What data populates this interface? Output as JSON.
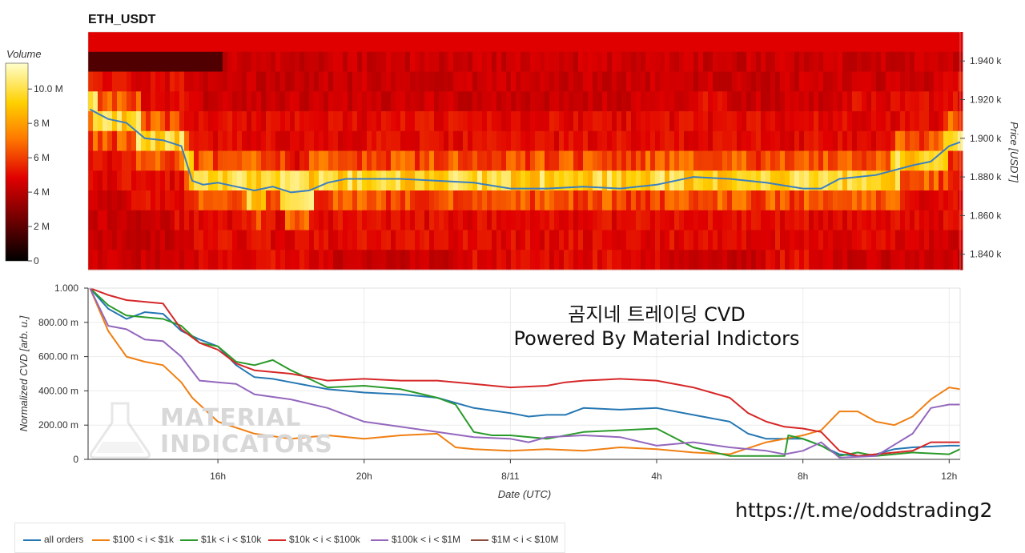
{
  "chart_data": [
    {
      "type": "heatmap",
      "title": "ETH_USDT",
      "colorbar": {
        "title": "Volume",
        "ticks": [
          "0",
          "2 M",
          "4 M",
          "6 M",
          "8 M",
          "10.0 M"
        ],
        "range": [
          0,
          11.5
        ]
      },
      "ylabel": "Price [USDT]",
      "y_ticks": [
        "1.840 k",
        "1.860 k",
        "1.880 k",
        "1.900 k",
        "1.920 k",
        "1.940 k"
      ],
      "ylim": [
        1832,
        1955
      ],
      "price_line": {
        "color": "#3a7fbf",
        "x": [
          12.5,
          13.0,
          13.5,
          14.0,
          14.5,
          15.0,
          15.3,
          15.6,
          16.0,
          16.5,
          17.0,
          17.5,
          18.0,
          18.5,
          19.0,
          19.5,
          20.0,
          21.0,
          22.0,
          23.0,
          24.0,
          25.0,
          26.0,
          27.0,
          28.0,
          29.0,
          30.0,
          31.0,
          32.0,
          32.5,
          33.0,
          33.5,
          34.0,
          35.0,
          35.5,
          36.0,
          36.3
        ],
        "y": [
          1915,
          1910,
          1908,
          1900,
          1899,
          1896,
          1878,
          1876,
          1877,
          1875,
          1873,
          1875,
          1872,
          1873,
          1877,
          1879,
          1879,
          1879,
          1878,
          1877,
          1874,
          1874,
          1875,
          1874,
          1876,
          1880,
          1879,
          1877,
          1874,
          1874,
          1879,
          1880,
          1881,
          1886,
          1888,
          1896,
          1898
        ]
      }
    },
    {
      "type": "line",
      "title": "",
      "xlabel": "Date (UTC)",
      "ylabel": "Normalized CVD [arb. u.]",
      "x_ticks": [
        "16h",
        "20h",
        "8/11",
        "4h",
        "8h",
        "12h"
      ],
      "x_tick_hours": [
        16,
        20,
        24,
        28,
        32,
        36
      ],
      "y_ticks": [
        "0",
        "200.00 m",
        "400.00 m",
        "600.00 m",
        "800.00 m",
        "1.000"
      ],
      "xlim": [
        12.45,
        36.3
      ],
      "ylim": [
        0,
        1.0
      ],
      "grid": true,
      "legend_position": "bottom-left",
      "series": [
        {
          "name": "all orders",
          "color": "#2577b3",
          "x": [
            12.5,
            13.0,
            13.5,
            14.0,
            14.5,
            15.0,
            15.5,
            16.0,
            16.5,
            17.0,
            17.5,
            18.0,
            19.0,
            20.0,
            21.0,
            22.0,
            23.0,
            24.0,
            24.5,
            25.0,
            25.5,
            26.0,
            27.0,
            28.0,
            29.0,
            30.0,
            30.5,
            31.0,
            32.0,
            32.5,
            33.0,
            33.5,
            34.0,
            34.5,
            35.0,
            36.0,
            36.3
          ],
          "y": [
            1.0,
            0.88,
            0.82,
            0.86,
            0.85,
            0.75,
            0.7,
            0.66,
            0.55,
            0.48,
            0.47,
            0.45,
            0.41,
            0.39,
            0.38,
            0.36,
            0.3,
            0.27,
            0.25,
            0.26,
            0.26,
            0.3,
            0.29,
            0.3,
            0.26,
            0.22,
            0.15,
            0.12,
            0.12,
            0.08,
            0.03,
            0.02,
            0.03,
            0.06,
            0.07,
            0.08,
            0.08
          ]
        },
        {
          "name": "$100 < i < $1k",
          "color": "#f07f12",
          "x": [
            12.5,
            13.0,
            13.5,
            14.0,
            14.5,
            15.0,
            15.3,
            16.0,
            17.0,
            18.0,
            19.0,
            20.0,
            21.0,
            22.0,
            22.5,
            23.0,
            24.0,
            25.0,
            26.0,
            27.0,
            28.0,
            29.0,
            30.0,
            31.0,
            32.0,
            32.5,
            33.0,
            33.5,
            34.0,
            34.5,
            35.0,
            35.5,
            36.0,
            36.3
          ],
          "y": [
            1.0,
            0.75,
            0.6,
            0.57,
            0.55,
            0.45,
            0.36,
            0.22,
            0.15,
            0.12,
            0.14,
            0.12,
            0.14,
            0.15,
            0.07,
            0.06,
            0.05,
            0.06,
            0.05,
            0.07,
            0.06,
            0.04,
            0.03,
            0.1,
            0.14,
            0.17,
            0.28,
            0.28,
            0.22,
            0.2,
            0.25,
            0.35,
            0.42,
            0.41
          ]
        },
        {
          "name": "$1k < i < $10k",
          "color": "#2a9a2a",
          "x": [
            12.5,
            13.0,
            13.5,
            14.0,
            14.5,
            15.0,
            15.5,
            16.0,
            16.5,
            17.0,
            17.5,
            18.0,
            19.0,
            20.0,
            21.0,
            22.0,
            22.5,
            23.0,
            23.5,
            24.0,
            25.0,
            26.0,
            27.0,
            28.0,
            29.0,
            30.0,
            31.0,
            31.5,
            31.6,
            32.0,
            32.5,
            33.0,
            33.5,
            34.0,
            35.0,
            36.0,
            36.3
          ],
          "y": [
            1.0,
            0.9,
            0.84,
            0.83,
            0.82,
            0.78,
            0.68,
            0.66,
            0.57,
            0.55,
            0.58,
            0.52,
            0.42,
            0.43,
            0.41,
            0.36,
            0.32,
            0.16,
            0.14,
            0.14,
            0.12,
            0.16,
            0.17,
            0.18,
            0.07,
            0.02,
            0.02,
            0.02,
            0.14,
            0.12,
            0.08,
            0.02,
            0.04,
            0.02,
            0.04,
            0.03,
            0.06
          ]
        },
        {
          "name": "$10k < i < $100k",
          "color": "#d62728",
          "x": [
            12.5,
            13.0,
            13.5,
            14.0,
            14.5,
            15.0,
            15.5,
            16.0,
            16.5,
            17.0,
            18.0,
            19.0,
            20.0,
            21.0,
            22.0,
            23.0,
            24.0,
            25.0,
            25.5,
            26.0,
            27.0,
            28.0,
            29.0,
            30.0,
            30.5,
            31.0,
            31.5,
            32.0,
            32.5,
            33.0,
            33.5,
            34.0,
            35.0,
            35.5,
            36.0,
            36.3
          ],
          "y": [
            1.0,
            0.96,
            0.93,
            0.92,
            0.91,
            0.76,
            0.68,
            0.64,
            0.56,
            0.52,
            0.5,
            0.46,
            0.47,
            0.46,
            0.46,
            0.44,
            0.42,
            0.43,
            0.45,
            0.46,
            0.47,
            0.46,
            0.42,
            0.36,
            0.27,
            0.22,
            0.19,
            0.18,
            0.16,
            0.05,
            0.02,
            0.03,
            0.05,
            0.1,
            0.1,
            0.1
          ]
        },
        {
          "name": "$100k < i < $1M",
          "color": "#9467bd",
          "x": [
            12.5,
            13.0,
            13.5,
            14.0,
            14.5,
            15.0,
            15.5,
            16.0,
            16.5,
            17.0,
            18.0,
            19.0,
            20.0,
            21.0,
            22.0,
            23.0,
            24.0,
            24.5,
            25.0,
            26.0,
            27.0,
            28.0,
            29.0,
            30.0,
            31.0,
            31.5,
            32.0,
            32.5,
            33.0,
            34.0,
            35.0,
            35.5,
            36.0,
            36.3
          ],
          "y": [
            1.0,
            0.78,
            0.76,
            0.7,
            0.69,
            0.6,
            0.46,
            0.45,
            0.44,
            0.38,
            0.35,
            0.3,
            0.22,
            0.19,
            0.16,
            0.13,
            0.12,
            0.1,
            0.13,
            0.14,
            0.13,
            0.08,
            0.1,
            0.07,
            0.05,
            0.03,
            0.05,
            0.1,
            0.01,
            0.02,
            0.15,
            0.3,
            0.32,
            0.32
          ]
        },
        {
          "name": "$1M < i < $10M",
          "color": "#8c4a3a",
          "x": [],
          "y": []
        }
      ]
    }
  ],
  "overlay": {
    "line1": "곰지네 트레이딩 CVD",
    "line2": "Powered By Material Indictors"
  },
  "watermark": {
    "line1": "MATERIAL",
    "line2": "INDICATORS"
  },
  "footer_url": "https://t.me/oddstrading2"
}
